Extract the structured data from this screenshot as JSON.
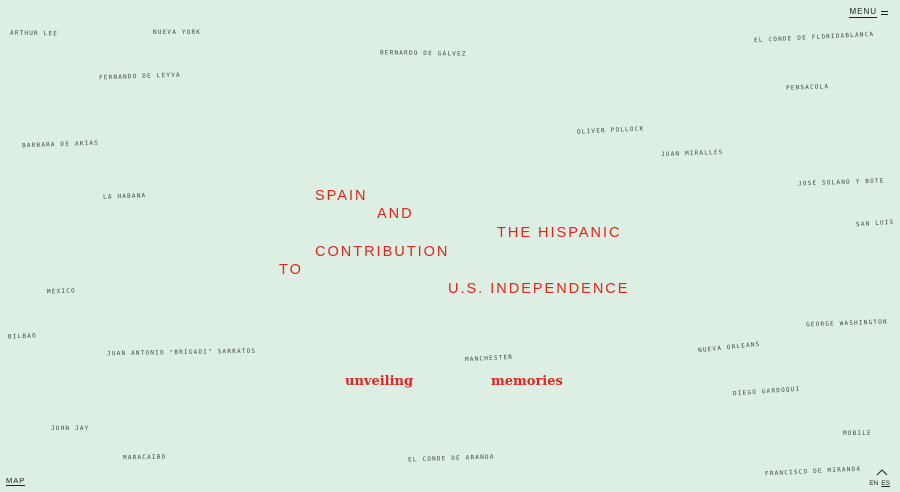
{
  "header": {
    "menu_label": "MENU"
  },
  "title_words": [
    "SPAIN",
    "AND",
    "THE HISPANIC",
    "CONTRIBUTION",
    "TO",
    "U.S. INDEPENDENCE"
  ],
  "tagline": [
    "unveiling",
    "memories"
  ],
  "places": [
    "Arthur Lee",
    "Nueva York",
    "Bernardo de Gálvez",
    "El Conde de Floridablanca",
    "Fernando de Leyva",
    "Pensacola",
    "Oliver Pollock",
    "Juan Miralles",
    "Barbara de Arias",
    "José Solano y Bote",
    "La Habana",
    "San Luis",
    "México",
    "George Washington",
    "Bilbao",
    "Juan Antonio \"Brigadi\" Sarratos",
    "Manchester",
    "Nueva Orleans",
    "Diego Gardoqui",
    "John Jay",
    "El Conde de Aranda",
    "Mobile",
    "Maracaibo",
    "Francisco de Miranda"
  ],
  "footer": {
    "map_label": "MAP",
    "lang_en": "EN",
    "lang_es": "ES"
  },
  "colors": {
    "background": "#dcefe2",
    "accent": "#e0261c",
    "text": "#222222"
  },
  "icons": {
    "menu": "hamburger-icon",
    "scroll_top": "chevron-up-icon"
  }
}
